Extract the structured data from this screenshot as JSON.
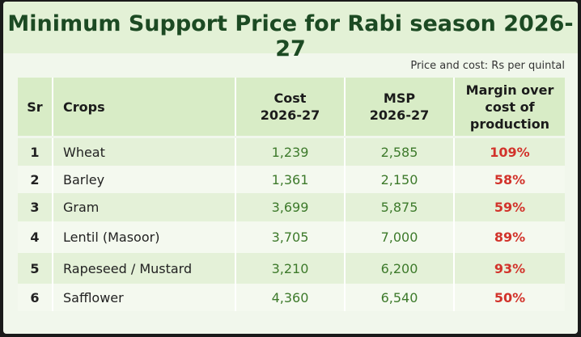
{
  "header": {
    "title": "Minimum Support Price for Rabi season 2026-27",
    "note": "Price and cost: Rs per quintal"
  },
  "table": {
    "columns": [
      "Sr",
      "Crops",
      "Cost\n2026-27",
      "MSP\n2026-27",
      "Margin over\ncost of\nproduction"
    ],
    "rows": [
      [
        "1",
        "Wheat",
        "1,239",
        "2,585",
        "109%"
      ],
      [
        "2",
        "Barley",
        "1,361",
        "2,150",
        "58%"
      ],
      [
        "3",
        "Gram",
        "3,699",
        "5,875",
        "59%"
      ],
      [
        "4",
        "Lentil (Masoor)",
        "3,705",
        "7,000",
        "89%"
      ],
      [
        "5",
        "Rapeseed / Mustard",
        "3,210",
        "6,200",
        "93%"
      ],
      [
        "6",
        "Safflower",
        "4,360",
        "6,540",
        "50%"
      ]
    ]
  }
}
